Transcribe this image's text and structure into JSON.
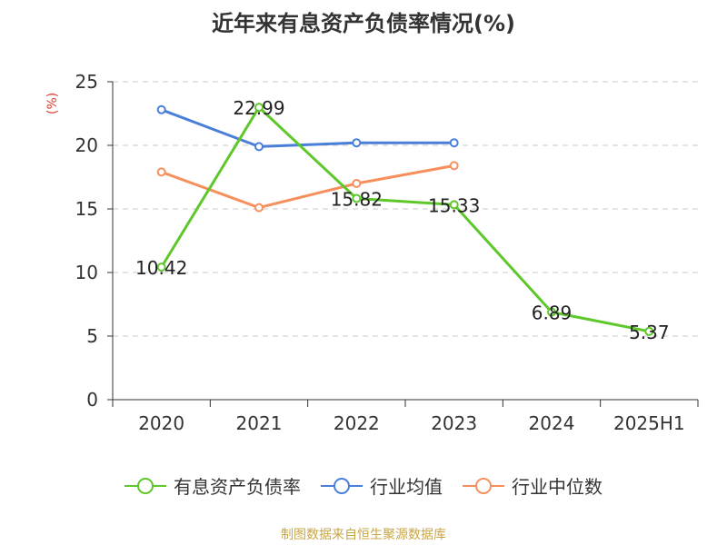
{
  "chart_data": {
    "type": "line",
    "title": "近年来有息资产负债率情况(%)",
    "ylabel": "(%)",
    "xlabel": "",
    "categories": [
      "2020",
      "2021",
      "2022",
      "2023",
      "2024",
      "2025H1"
    ],
    "ylim": [
      0,
      25
    ],
    "yticks": [
      0,
      5,
      10,
      15,
      20,
      25
    ],
    "grid": true,
    "legend_position": "bottom",
    "series": [
      {
        "name": "有息资产负债率",
        "color": "#5ec72a",
        "values": [
          10.42,
          22.99,
          15.82,
          15.33,
          6.89,
          5.37
        ],
        "labels": [
          "10.42",
          "22.99",
          "15.82",
          "15.33",
          "6.89",
          "5.37"
        ]
      },
      {
        "name": "行业均值",
        "color": "#4a7fd9",
        "values": [
          22.8,
          19.9,
          20.2,
          20.2,
          null,
          null
        ]
      },
      {
        "name": "行业中位数",
        "color": "#f78f5c",
        "values": [
          17.9,
          15.1,
          17.0,
          18.4,
          null,
          null
        ]
      }
    ]
  },
  "source": "制图数据来自恒生聚源数据库"
}
